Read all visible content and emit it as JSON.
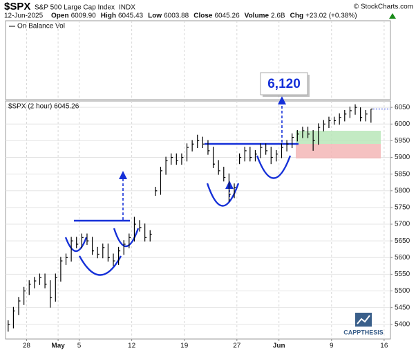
{
  "header": {
    "symbol": "$SPX",
    "name": "S&P 500 Large Cap Index",
    "exchange": "INDX",
    "credit": "© StockCharts.com",
    "date": "12-Jun-2025",
    "quote": [
      {
        "label": "Open",
        "value": "6009.90"
      },
      {
        "label": "High",
        "value": "6045.43"
      },
      {
        "label": "Low",
        "value": "6003.88"
      },
      {
        "label": "Close",
        "value": "6045.26"
      },
      {
        "label": "Volume",
        "value": "2.6B"
      },
      {
        "label": "Chg",
        "value": "+23.02 (+0.38%)"
      }
    ]
  },
  "watermark": "CAPPTHESIS",
  "chart_data": {
    "type": "ohlc",
    "indicator_label": "On Balance Vol",
    "annotation": "6,120",
    "grid": true,
    "xlim": [
      -2,
      34.6
    ],
    "xticks": [
      {
        "value": 0,
        "label": "28"
      },
      {
        "value": 3,
        "label": "May"
      },
      {
        "value": 5,
        "label": "5"
      },
      {
        "value": 10,
        "label": "12"
      },
      {
        "value": 15,
        "label": "19"
      },
      {
        "value": 20,
        "label": "27"
      },
      {
        "value": 24,
        "label": "Jun"
      },
      {
        "value": 29,
        "label": "9"
      },
      {
        "value": 34,
        "label": "16"
      }
    ],
    "ylim": [
      5356,
      6069
    ],
    "yticks": [
      5400,
      5450,
      5500,
      5550,
      5600,
      5650,
      5700,
      5750,
      5800,
      5850,
      5900,
      5950,
      6000,
      6050
    ],
    "x": [
      -1.75,
      -1.25,
      -0.75,
      -0.25,
      0.25,
      0.75,
      1.25,
      1.75,
      2.25,
      2.75,
      3.25,
      3.75,
      4.25,
      4.75,
      5.25,
      5.75,
      6.25,
      6.75,
      7.25,
      7.75,
      8.25,
      8.75,
      9.25,
      9.75,
      10.25,
      10.75,
      11.25,
      11.75,
      12.25,
      12.75,
      13.25,
      13.75,
      14.25,
      14.75,
      15.25,
      15.75,
      16.25,
      16.75,
      17.25,
      17.75,
      18.25,
      18.75,
      19.25,
      19.75,
      20.25,
      20.75,
      21.25,
      21.75,
      22.25,
      22.75,
      23.25,
      23.75,
      24.25,
      24.75,
      25.25,
      25.75,
      26.25,
      26.75,
      27.25,
      27.75,
      28.25,
      28.75,
      29.25,
      29.75,
      30.25,
      30.75,
      31.25,
      31.75,
      32.25,
      32.75
    ],
    "series": [
      {
        "name": "$SPX (2 hour) 6045.26",
        "color": "#000000",
        "high": [
          5412,
          5452,
          5482,
          5512,
          5532,
          5542,
          5552,
          5552,
          5532,
          5552,
          5602,
          5612,
          5662,
          5662,
          5672,
          5672,
          5662,
          5632,
          5642,
          5642,
          5612,
          5632,
          5652,
          5672,
          5722,
          5712,
          5702,
          5682,
          5812,
          5872,
          5902,
          5912,
          5912,
          5912,
          5942,
          5952,
          5968,
          5962,
          5952,
          5932,
          5892,
          5872,
          5852,
          5822,
          5912,
          5932,
          5932,
          5922,
          5942,
          5942,
          5932,
          5922,
          5942,
          5952,
          5972,
          5982,
          5992,
          5992,
          5982,
          6002,
          6012,
          6022,
          6022,
          6032,
          6042,
          6052,
          6059,
          6050,
          6042,
          6045
        ],
        "low": [
          5378,
          5388,
          5428,
          5458,
          5488,
          5508,
          5518,
          5508,
          5450,
          5468,
          5528,
          5578,
          5588,
          5628,
          5628,
          5638,
          5608,
          5598,
          5598,
          5588,
          5575,
          5578,
          5608,
          5628,
          5648,
          5678,
          5648,
          5648,
          5785,
          5788,
          5848,
          5878,
          5878,
          5878,
          5888,
          5918,
          5928,
          5928,
          5908,
          5868,
          5848,
          5828,
          5767,
          5778,
          5880,
          5888,
          5888,
          5888,
          5898,
          5908,
          5880,
          5888,
          5898,
          5918,
          5928,
          5948,
          5958,
          5958,
          5920,
          5938,
          5978,
          5988,
          5998,
          5998,
          6008,
          6018,
          6028,
          6008,
          6008,
          6004
        ],
        "close": [
          5400,
          5440,
          5470,
          5500,
          5520,
          5530,
          5540,
          5520,
          5480,
          5540,
          5590,
          5600,
          5650,
          5640,
          5660,
          5650,
          5620,
          5610,
          5630,
          5600,
          5590,
          5620,
          5640,
          5660,
          5700,
          5690,
          5660,
          5670,
          5800,
          5860,
          5890,
          5900,
          5890,
          5900,
          5930,
          5940,
          5950,
          5940,
          5920,
          5880,
          5860,
          5840,
          5790,
          5810,
          5900,
          5920,
          5900,
          5910,
          5930,
          5920,
          5900,
          5910,
          5930,
          5940,
          5960,
          5970,
          5980,
          5970,
          5950,
          5990,
          6000,
          6010,
          6010,
          6020,
          6030,
          6040,
          6050,
          6020,
          6030,
          6045
        ]
      }
    ]
  }
}
